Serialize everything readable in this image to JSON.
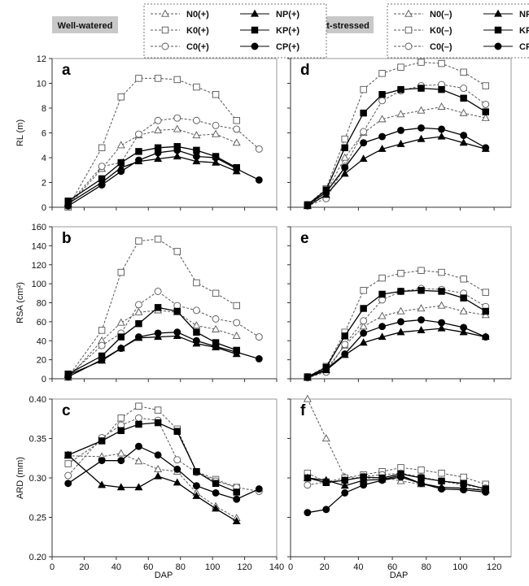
{
  "conditions": {
    "well": "Well-watered",
    "drought": "Drought-stressed"
  },
  "legends": {
    "well": [
      "N0(+)",
      "NP(+)",
      "K0(+)",
      "KP(+)",
      "C0(+)",
      "CP(+)"
    ],
    "drought": [
      "N0(–)",
      "NP(–)",
      "K0(–)",
      "KP(–)",
      "C0(–)",
      "CP(–)"
    ]
  },
  "xlabel": "DAP",
  "series_styles": {
    "N0": {
      "marker": "triangle",
      "fill": "open",
      "dash": "dashed"
    },
    "NP": {
      "marker": "triangle",
      "fill": "solid",
      "dash": "solid"
    },
    "K0": {
      "marker": "square",
      "fill": "open",
      "dash": "dashed"
    },
    "KP": {
      "marker": "square",
      "fill": "solid",
      "dash": "solid"
    },
    "C0": {
      "marker": "circle",
      "fill": "open",
      "dash": "dashed"
    },
    "CP": {
      "marker": "circle",
      "fill": "solid",
      "dash": "solid"
    }
  },
  "chart_data": [
    {
      "id": "a",
      "letter": "a",
      "type": "line",
      "ylabel": "RL (m)",
      "xlim": [
        0,
        140
      ],
      "xticks": [
        0,
        20,
        40,
        60,
        80,
        100,
        120,
        140
      ],
      "ylim": [
        0,
        12
      ],
      "yticks": [
        0,
        2,
        4,
        6,
        8,
        10,
        12
      ],
      "ytick_labels": [
        "0",
        "2",
        "4",
        "6",
        "8",
        "10",
        "12"
      ],
      "series": [
        {
          "key": "N0",
          "x": [
            10,
            31,
            43,
            54,
            66,
            78,
            90,
            102,
            115
          ],
          "y": [
            0.1,
            3.1,
            5.0,
            5.8,
            6.2,
            6.3,
            5.8,
            5.9,
            5.2
          ]
        },
        {
          "key": "NP",
          "x": [
            10,
            31,
            43,
            54,
            66,
            78,
            90,
            102,
            115
          ],
          "y": [
            0.3,
            2.0,
            3.2,
            3.7,
            3.9,
            4.1,
            3.7,
            3.6,
            2.9
          ]
        },
        {
          "key": "K0",
          "x": [
            10,
            31,
            43,
            54,
            66,
            78,
            90,
            102,
            115
          ],
          "y": [
            0.0,
            4.8,
            8.9,
            10.4,
            10.4,
            10.3,
            9.7,
            9.1,
            7.0
          ]
        },
        {
          "key": "KP",
          "x": [
            10,
            31,
            43,
            54,
            66,
            78,
            90,
            102,
            115
          ],
          "y": [
            0.5,
            2.3,
            3.6,
            4.5,
            4.8,
            4.9,
            4.6,
            4.1,
            3.2
          ]
        },
        {
          "key": "C0",
          "x": [
            10,
            31,
            43,
            54,
            66,
            78,
            90,
            102,
            115,
            129
          ],
          "y": [
            0.2,
            3.3,
            3.6,
            5.9,
            7.0,
            7.2,
            7.0,
            6.6,
            6.3,
            4.7
          ]
        },
        {
          "key": "CP",
          "x": [
            10,
            31,
            43,
            54,
            66,
            78,
            90,
            102,
            115,
            129
          ],
          "y": [
            0.1,
            1.8,
            2.9,
            3.8,
            4.4,
            4.6,
            4.1,
            4.0,
            3.1,
            2.2
          ]
        }
      ]
    },
    {
      "id": "d",
      "letter": "d",
      "type": "line",
      "ylabel": "",
      "xlim": [
        0,
        130
      ],
      "xticks": [
        0,
        20,
        40,
        60,
        80,
        100,
        120
      ],
      "ylim": [
        0,
        12
      ],
      "yticks": [
        0,
        2,
        4,
        6,
        8,
        10,
        12
      ],
      "ytick_labels": [],
      "series": [
        {
          "key": "N0",
          "x": [
            10,
            21,
            32,
            43,
            54,
            65,
            77,
            89,
            102,
            115
          ],
          "y": [
            0.1,
            1.2,
            4.0,
            6.0,
            7.1,
            7.5,
            7.8,
            8.1,
            7.6,
            7.2
          ]
        },
        {
          "key": "NP",
          "x": [
            10,
            21,
            32,
            43,
            54,
            65,
            77,
            89,
            102,
            115
          ],
          "y": [
            0.1,
            1.0,
            2.7,
            3.9,
            4.7,
            5.1,
            5.5,
            5.7,
            5.2,
            4.7
          ]
        },
        {
          "key": "K0",
          "x": [
            10,
            21,
            32,
            43,
            54,
            65,
            77,
            89,
            102,
            115
          ],
          "y": [
            0.2,
            1.5,
            5.5,
            9.5,
            10.8,
            11.3,
            11.7,
            11.6,
            10.9,
            9.8
          ]
        },
        {
          "key": "KP",
          "x": [
            10,
            21,
            32,
            43,
            54,
            65,
            77,
            89,
            102,
            115
          ],
          "y": [
            0.2,
            1.4,
            4.8,
            7.6,
            9.1,
            9.5,
            9.6,
            9.5,
            8.8,
            7.7
          ]
        },
        {
          "key": "C0",
          "x": [
            10,
            21,
            32,
            43,
            54,
            65,
            77,
            89,
            102,
            115
          ],
          "y": [
            0.1,
            0.7,
            3.3,
            6.1,
            8.6,
            9.4,
            9.8,
            9.9,
            9.6,
            8.3
          ]
        },
        {
          "key": "CP",
          "x": [
            10,
            21,
            32,
            43,
            54,
            65,
            77,
            89,
            102,
            115
          ],
          "y": [
            0.2,
            1.2,
            3.2,
            5.2,
            5.7,
            6.2,
            6.4,
            6.3,
            5.8,
            4.8
          ]
        }
      ]
    },
    {
      "id": "b",
      "letter": "b",
      "type": "line",
      "ylabel": "RSA (cm²)",
      "xlim": [
        0,
        140
      ],
      "xticks": [
        0,
        20,
        40,
        60,
        80,
        100,
        120,
        140
      ],
      "ylim": [
        0,
        160
      ],
      "yticks": [
        0,
        20,
        40,
        60,
        80,
        100,
        120,
        140,
        160
      ],
      "ytick_labels": [
        "0",
        "20",
        "40",
        "60",
        "80",
        "100",
        "120",
        "140",
        "160"
      ],
      "series": [
        {
          "key": "N0",
          "x": [
            10,
            31,
            43,
            54,
            66,
            78,
            90,
            102,
            115
          ],
          "y": [
            1,
            40,
            59,
            70,
            72,
            70,
            56,
            52,
            45
          ]
        },
        {
          "key": "NP",
          "x": [
            10,
            31,
            43,
            54,
            66,
            78,
            90,
            102,
            115
          ],
          "y": [
            4,
            19,
            32,
            43,
            44,
            45,
            37,
            33,
            26
          ]
        },
        {
          "key": "K0",
          "x": [
            10,
            31,
            43,
            54,
            66,
            78,
            90,
            102,
            115
          ],
          "y": [
            2,
            51,
            112,
            145,
            147,
            134,
            101,
            90,
            77
          ]
        },
        {
          "key": "KP",
          "x": [
            10,
            31,
            43,
            54,
            66,
            78,
            90,
            102,
            115
          ],
          "y": [
            5,
            24,
            44,
            58,
            75,
            71,
            49,
            38,
            30
          ]
        },
        {
          "key": "C0",
          "x": [
            10,
            31,
            43,
            54,
            66,
            78,
            90,
            102,
            115,
            129
          ],
          "y": [
            3,
            35,
            48,
            78,
            92,
            77,
            72,
            63,
            59,
            44
          ]
        },
        {
          "key": "CP",
          "x": [
            10,
            31,
            43,
            54,
            66,
            78,
            90,
            102,
            115,
            129
          ],
          "y": [
            2,
            20,
            32,
            44,
            48,
            49,
            40,
            34,
            28,
            21
          ]
        }
      ]
    },
    {
      "id": "e",
      "letter": "e",
      "type": "line",
      "ylabel": "",
      "xlim": [
        0,
        130
      ],
      "xticks": [
        0,
        20,
        40,
        60,
        80,
        100,
        120
      ],
      "ylim": [
        0,
        160
      ],
      "yticks": [
        0,
        20,
        40,
        60,
        80,
        100,
        120,
        140,
        160
      ],
      "ytick_labels": [],
      "series": [
        {
          "key": "N0",
          "x": [
            10,
            21,
            32,
            43,
            54,
            65,
            77,
            89,
            102,
            115
          ],
          "y": [
            1,
            10,
            35,
            55,
            66,
            71,
            74,
            77,
            71,
            67
          ]
        },
        {
          "key": "NP",
          "x": [
            10,
            21,
            32,
            43,
            54,
            65,
            77,
            89,
            102,
            115
          ],
          "y": [
            1,
            9,
            25,
            38,
            44,
            49,
            51,
            53,
            49,
            44
          ]
        },
        {
          "key": "K0",
          "x": [
            10,
            21,
            32,
            43,
            54,
            65,
            77,
            89,
            102,
            115
          ],
          "y": [
            2,
            13,
            49,
            93,
            106,
            111,
            114,
            112,
            105,
            91
          ]
        },
        {
          "key": "KP",
          "x": [
            10,
            21,
            32,
            43,
            54,
            65,
            77,
            89,
            102,
            115
          ],
          "y": [
            2,
            12,
            45,
            74,
            89,
            92,
            93,
            92,
            85,
            71
          ]
        },
        {
          "key": "C0",
          "x": [
            10,
            21,
            32,
            43,
            54,
            65,
            77,
            89,
            102,
            115
          ],
          "y": [
            1,
            7,
            36,
            61,
            83,
            92,
            95,
            94,
            90,
            76
          ]
        },
        {
          "key": "CP",
          "x": [
            10,
            21,
            32,
            43,
            54,
            65,
            77,
            89,
            102,
            115
          ],
          "y": [
            2,
            10,
            26,
            48,
            55,
            60,
            62,
            59,
            54,
            44
          ]
        }
      ]
    },
    {
      "id": "c",
      "letter": "c",
      "type": "line",
      "ylabel": "ARD (mm)",
      "xlim": [
        0,
        140
      ],
      "xticks": [
        0,
        20,
        40,
        60,
        80,
        100,
        120,
        140
      ],
      "ylim": [
        0.2,
        0.4
      ],
      "yticks": [
        0.2,
        0.25,
        0.3,
        0.35,
        0.4
      ],
      "ytick_labels": [
        "0.20",
        "0.25",
        "0.30",
        "0.35",
        "0.40"
      ],
      "series": [
        {
          "key": "N0",
          "x": [
            10,
            31,
            43,
            54,
            66,
            78,
            90,
            102,
            115
          ],
          "y": [
            0.328,
            0.327,
            0.331,
            0.321,
            0.311,
            0.308,
            0.281,
            0.264,
            0.249
          ]
        },
        {
          "key": "NP",
          "x": [
            10,
            31,
            43,
            54,
            66,
            78,
            90,
            102,
            115
          ],
          "y": [
            0.329,
            0.291,
            0.288,
            0.288,
            0.302,
            0.294,
            0.277,
            0.261,
            0.245
          ]
        },
        {
          "key": "K0",
          "x": [
            10,
            31,
            43,
            54,
            66,
            78,
            90,
            102,
            115
          ],
          "y": [
            0.318,
            0.347,
            0.376,
            0.391,
            0.386,
            0.362,
            0.308,
            0.298,
            0.288
          ]
        },
        {
          "key": "KP",
          "x": [
            10,
            31,
            43,
            54,
            66,
            78,
            90,
            102,
            115
          ],
          "y": [
            0.329,
            0.347,
            0.36,
            0.368,
            0.37,
            0.359,
            0.308,
            0.293,
            0.282
          ]
        },
        {
          "key": "C0",
          "x": [
            10,
            31,
            43,
            54,
            66,
            78,
            90,
            102,
            115,
            129
          ],
          "y": [
            0.303,
            0.351,
            0.367,
            0.376,
            0.373,
            0.323,
            0.307,
            0.296,
            0.288,
            0.283
          ]
        },
        {
          "key": "CP",
          "x": [
            10,
            31,
            43,
            54,
            66,
            78,
            90,
            102,
            115,
            129
          ],
          "y": [
            0.293,
            0.322,
            0.322,
            0.34,
            0.329,
            0.311,
            0.29,
            0.281,
            0.273,
            0.286
          ]
        }
      ]
    },
    {
      "id": "f",
      "letter": "f",
      "type": "line",
      "ylabel": "",
      "xlim": [
        0,
        130
      ],
      "xticks": [
        0,
        20,
        40,
        60,
        80,
        100,
        120
      ],
      "ylim": [
        0.2,
        0.4
      ],
      "yticks": [
        0.2,
        0.25,
        0.3,
        0.35,
        0.4
      ],
      "ytick_labels": [],
      "series": [
        {
          "key": "N0",
          "x": [
            10,
            21,
            32,
            43,
            54,
            65,
            77,
            89,
            102,
            115
          ],
          "y": [
            0.4,
            0.35,
            0.301,
            0.299,
            0.301,
            0.296,
            0.292,
            0.288,
            0.287,
            0.285
          ]
        },
        {
          "key": "NP",
          "x": [
            10,
            21,
            32,
            43,
            54,
            65,
            77,
            89,
            102,
            115
          ],
          "y": [
            0.3,
            0.297,
            0.29,
            0.297,
            0.298,
            0.303,
            0.293,
            0.288,
            0.287,
            0.284
          ]
        },
        {
          "key": "K0",
          "x": [
            10,
            21,
            32,
            43,
            54,
            65,
            77,
            89,
            102,
            115
          ],
          "y": [
            0.306,
            0.295,
            0.3,
            0.304,
            0.308,
            0.313,
            0.31,
            0.306,
            0.301,
            0.292
          ]
        },
        {
          "key": "KP",
          "x": [
            10,
            21,
            32,
            43,
            54,
            65,
            77,
            89,
            102,
            115
          ],
          "y": [
            0.3,
            0.294,
            0.297,
            0.301,
            0.3,
            0.305,
            0.3,
            0.296,
            0.293,
            0.286
          ]
        },
        {
          "key": "C0",
          "x": [
            10,
            21,
            32,
            43,
            54,
            65,
            77,
            89,
            102,
            115
          ],
          "y": [
            0.291,
            0.295,
            0.297,
            0.302,
            0.304,
            0.306,
            0.301,
            0.296,
            0.291,
            0.287
          ]
        },
        {
          "key": "CP",
          "x": [
            10,
            21,
            32,
            43,
            54,
            65,
            77,
            89,
            102,
            115
          ],
          "y": [
            0.256,
            0.26,
            0.281,
            0.291,
            0.297,
            0.301,
            0.293,
            0.286,
            0.285,
            0.282
          ]
        }
      ]
    }
  ]
}
